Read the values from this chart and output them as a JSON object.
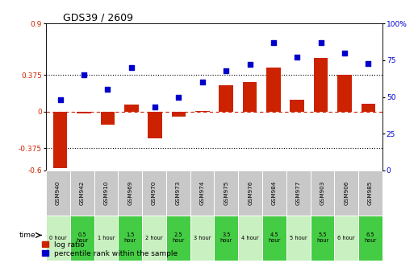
{
  "title": "GDS39 / 2609",
  "samples": [
    "GSM940",
    "GSM942",
    "GSM910",
    "GSM969",
    "GSM970",
    "GSM973",
    "GSM974",
    "GSM975",
    "GSM976",
    "GSM984",
    "GSM977",
    "GSM903",
    "GSM906",
    "GSM985"
  ],
  "time_labels": [
    "0 hour",
    "0.5\nhour",
    "1 hour",
    "1.5\nhour",
    "2 hour",
    "2.5\nhour",
    "3 hour",
    "3.5\nhour",
    "4 hour",
    "4.5\nhour",
    "5 hour",
    "5.5\nhour",
    "6 hour",
    "6.5\nhour"
  ],
  "log_ratio": [
    -0.58,
    -0.02,
    -0.13,
    0.07,
    -0.27,
    -0.05,
    0.01,
    0.27,
    0.3,
    0.45,
    0.12,
    0.55,
    0.38,
    0.08
  ],
  "percentile": [
    48,
    65,
    55,
    70,
    43,
    50,
    60,
    68,
    72,
    87,
    77,
    87,
    80,
    73
  ],
  "ylim_left": [
    -0.6,
    0.9
  ],
  "ylim_right": [
    0,
    100
  ],
  "yticks_left": [
    -0.6,
    -0.375,
    0,
    0.375,
    0.9
  ],
  "yticks_right": [
    0,
    25,
    50,
    75,
    100
  ],
  "hline_y": [
    0.375,
    -0.375
  ],
  "bar_color": "#cc2200",
  "dot_color": "#0000cc",
  "bg_color": "#ffffff",
  "plot_bg": "#ffffff",
  "time_bg_whole": "#c8f0c0",
  "time_bg_half": "#44cc44",
  "gsm_bg": "#c8c8c8",
  "legend_log_ratio": "log ratio",
  "legend_percentile": "percentile rank within the sample",
  "time_is_half": [
    false,
    true,
    false,
    true,
    false,
    true,
    false,
    true,
    false,
    true,
    false,
    true,
    false,
    true
  ]
}
